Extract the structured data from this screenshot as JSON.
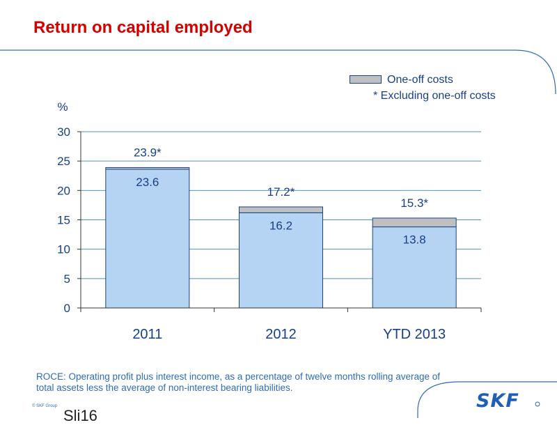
{
  "slide": {
    "title": "Return on capital employed",
    "footnote": "ROCE: Operating profit plus interest income, as a percentage of twelve months rolling average of total assets less the average of non-interest bearing liabilities.",
    "copyright": "© SKF Group",
    "slide_number": "Sli16",
    "logo_text": "SKF",
    "colors": {
      "title": "#d40000",
      "text": "#173f8a",
      "bar_base": "#b5d3f2",
      "bar_oneoff": "#c0c0c0",
      "bar_edge": "#17447c",
      "grid": "#4f95bf"
    }
  },
  "legend": {
    "one_off_label": "One-off costs",
    "excluding_label": "*  Excluding one-off costs"
  },
  "chart_data": {
    "type": "bar",
    "stacked": true,
    "ylabel": "%",
    "ylim": [
      0,
      30
    ],
    "yticks": [
      0,
      5,
      10,
      15,
      20,
      25,
      30
    ],
    "grid": true,
    "legend_position": "top-right",
    "categories": [
      "2011",
      "2012",
      "YTD 2013"
    ],
    "series": [
      {
        "values": [
          23.6,
          16.2,
          13.8
        ]
      },
      {
        "name": "One-off costs",
        "values": [
          0.3,
          1.0,
          1.5
        ]
      }
    ],
    "base_labels": [
      "23.6",
      "16.2",
      "13.8"
    ],
    "total_labels": [
      "23.9*",
      "17.2*",
      "15.3*"
    ],
    "totals": [
      23.9,
      17.2,
      15.3
    ]
  }
}
